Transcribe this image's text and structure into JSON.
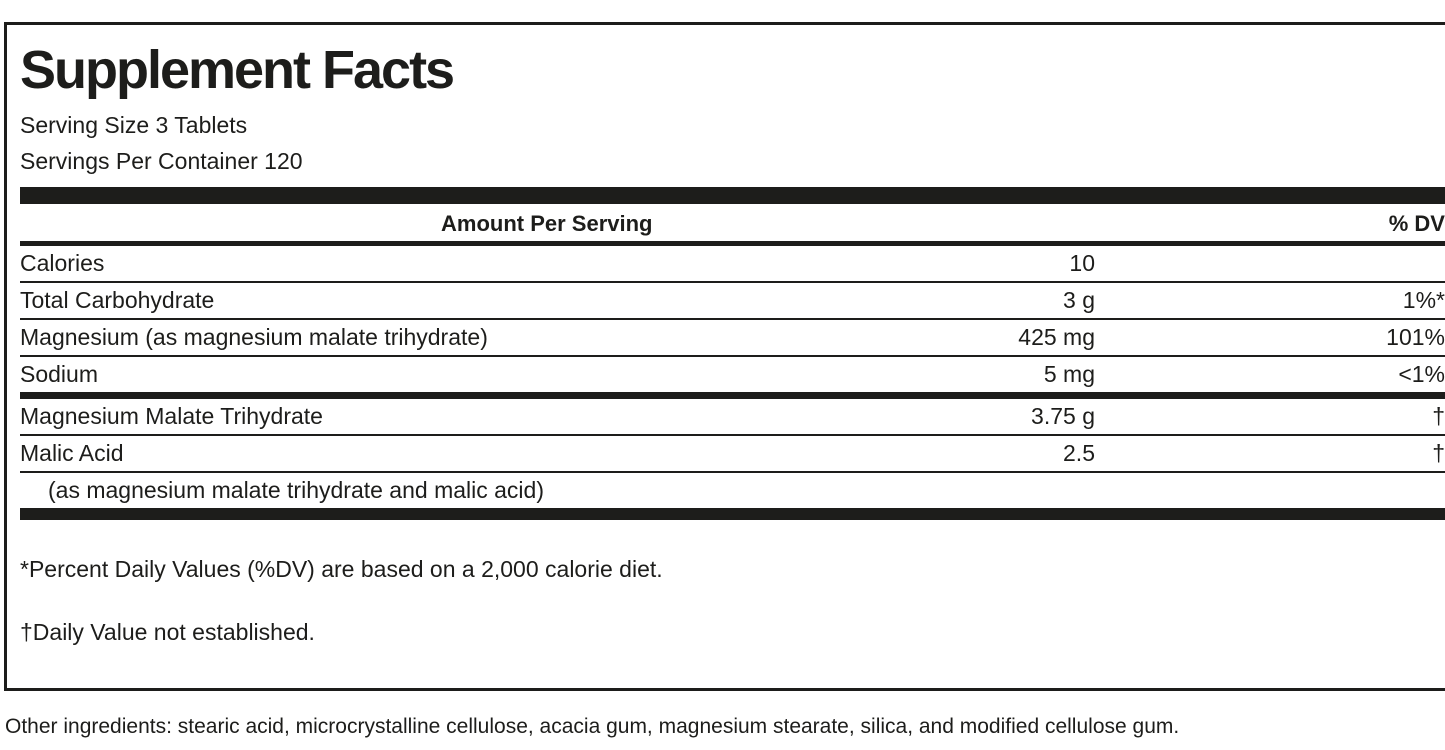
{
  "label": {
    "title": "Supplement Facts",
    "serving_size": "Serving Size 3 Tablets",
    "servings_per_container": "Servings Per Container 120"
  },
  "table": {
    "amount_header": "Amount Per Serving",
    "dv_header": "% DV",
    "rows": [
      {
        "name": "Calories",
        "amount": "10",
        "dv": ""
      },
      {
        "name": "Total Carbohydrate",
        "amount": "3 g",
        "dv": "1%*"
      },
      {
        "name": "Magnesium (as magnesium malate trihydrate)",
        "amount": "425 mg",
        "dv": "101%"
      },
      {
        "name": "Sodium",
        "amount": "5 mg",
        "dv": "<1%"
      },
      {
        "name": "Magnesium Malate Trihydrate",
        "amount": "3.75 g",
        "dv": "†"
      },
      {
        "name": "Malic Acid",
        "amount": "2.5",
        "dv": "†"
      },
      {
        "name": "(as magnesium malate trihydrate and malic acid)",
        "amount": "",
        "dv": ""
      }
    ]
  },
  "footnotes": {
    "dv_note": "*Percent Daily Values (%DV) are based on a 2,000 calorie diet.",
    "dagger_note": "†Daily Value not established."
  },
  "other_ingredients": "Other ingredients: stearic acid, microcrystalline cellulose, acacia gum, magnesium stearate, silica, and modified cellulose gum.",
  "colors": {
    "ink": "#1d1d1b",
    "background": "#ffffff"
  }
}
